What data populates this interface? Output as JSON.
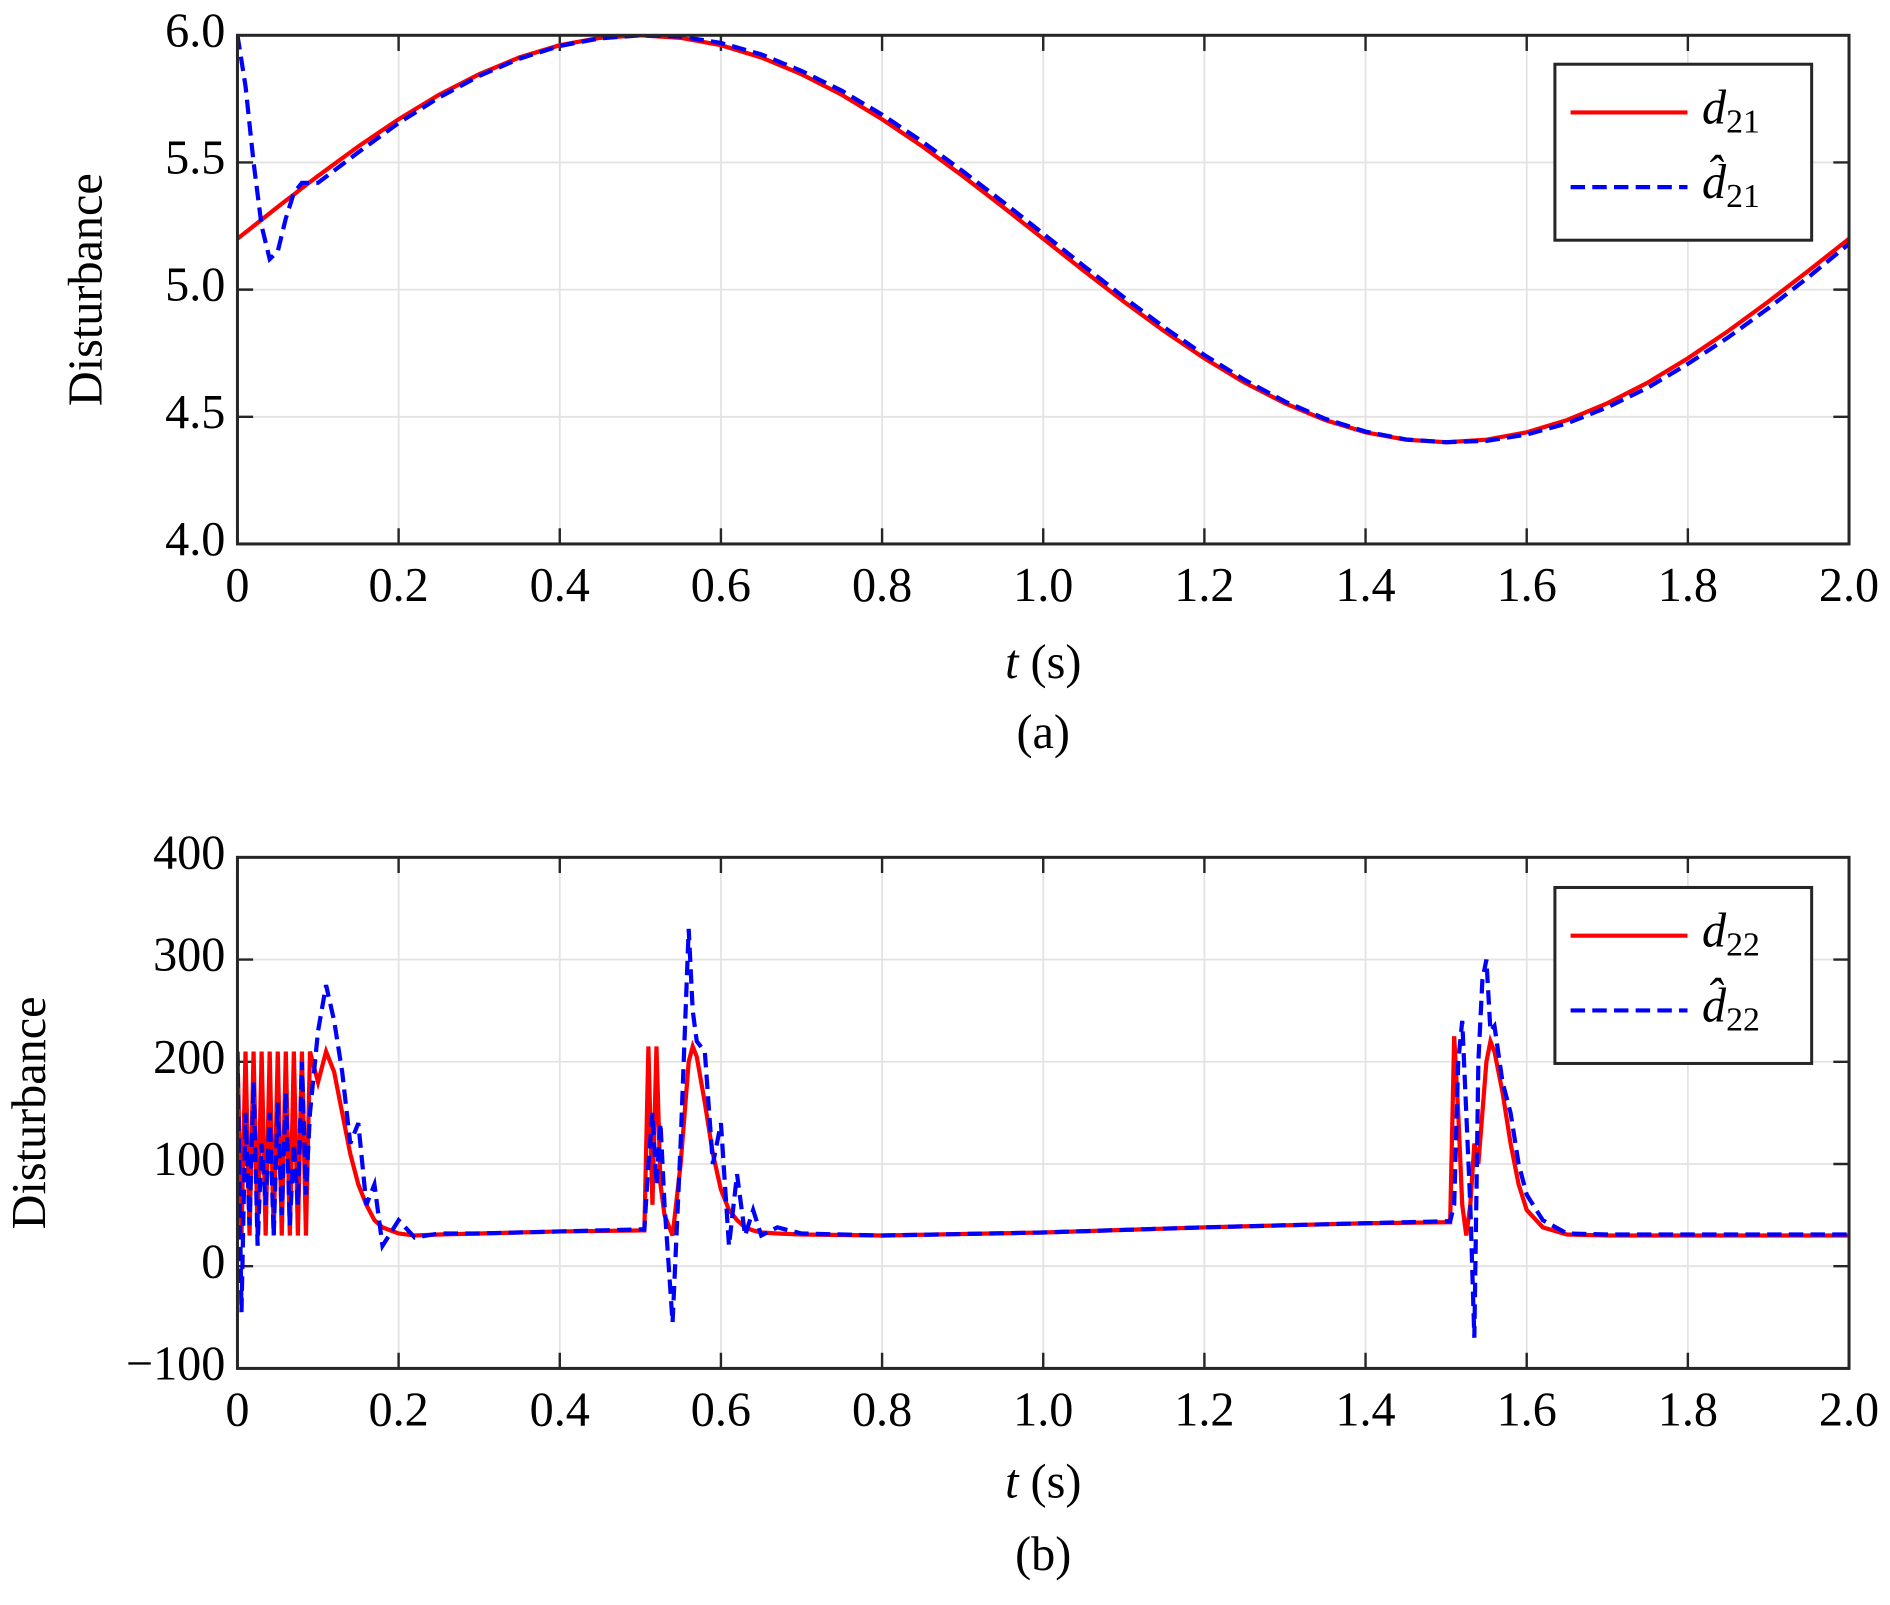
{
  "chart_data": [
    {
      "type": "line",
      "ylabel": "Disturbance",
      "xlabel": "t (s)",
      "caption": "(a)",
      "xlim": [
        0,
        2
      ],
      "ylim": [
        4,
        6
      ],
      "xticks": [
        0,
        0.2,
        0.4,
        0.6,
        0.8,
        {
          "value": 1,
          "label": "1.0"
        },
        1.2,
        1.4,
        1.6,
        1.8,
        {
          "value": 2,
          "label": "2.0"
        }
      ],
      "yticks": [
        {
          "value": 4,
          "label": "4.0"
        },
        4.5,
        {
          "value": 5,
          "label": "5.0"
        },
        5.5,
        {
          "value": 6,
          "label": "6.0"
        }
      ],
      "grid": true,
      "legend": "upper right",
      "x": [
        0,
        0.01,
        0.02,
        0.03,
        0.04,
        0.05,
        0.06,
        0.07,
        0.08,
        0.1,
        0.15,
        0.2,
        0.25,
        0.3,
        0.35,
        0.4,
        0.45,
        0.5,
        0.55,
        0.6,
        0.65,
        0.7,
        0.75,
        0.8,
        0.85,
        0.9,
        0.95,
        1.0,
        1.05,
        1.1,
        1.15,
        1.2,
        1.25,
        1.3,
        1.35,
        1.4,
        1.45,
        1.5,
        1.55,
        1.6,
        1.65,
        1.7,
        1.75,
        1.8,
        1.85,
        1.9,
        1.95,
        2.0
      ],
      "series": [
        {
          "name": "d21",
          "color": "#ff0000",
          "style": "solid",
          "values": [
            5.2,
            5.225,
            5.25,
            5.275,
            5.3,
            5.325,
            5.35,
            5.374,
            5.399,
            5.447,
            5.563,
            5.67,
            5.766,
            5.847,
            5.913,
            5.961,
            5.99,
            6.0,
            5.99,
            5.961,
            5.913,
            5.847,
            5.766,
            5.67,
            5.563,
            5.447,
            5.325,
            5.2,
            5.075,
            4.953,
            4.837,
            4.73,
            4.634,
            4.553,
            4.487,
            4.439,
            4.41,
            4.4,
            4.41,
            4.439,
            4.487,
            4.553,
            4.634,
            4.73,
            4.837,
            4.953,
            5.075,
            5.2
          ]
        },
        {
          "name": "d̂21",
          "color": "#0000ff",
          "style": "dashed",
          "values": [
            6.0,
            5.8,
            5.5,
            5.25,
            5.12,
            5.15,
            5.28,
            5.38,
            5.42,
            5.42,
            5.54,
            5.655,
            5.755,
            5.84,
            5.908,
            5.958,
            5.988,
            6.0,
            5.995,
            5.97,
            5.925,
            5.86,
            5.782,
            5.688,
            5.582,
            5.466,
            5.345,
            5.22,
            5.094,
            4.97,
            4.852,
            4.743,
            4.645,
            4.56,
            4.492,
            4.442,
            4.411,
            4.4,
            4.405,
            4.43,
            4.474,
            4.537,
            4.614,
            4.708,
            4.812,
            4.927,
            5.05,
            5.18
          ]
        }
      ]
    },
    {
      "type": "line",
      "ylabel": "Disturbance",
      "xlabel": "t (s)",
      "caption": "(b)",
      "xlim": [
        0,
        2
      ],
      "ylim": [
        -100,
        400
      ],
      "xticks": [
        0,
        0.2,
        0.4,
        0.6,
        0.8,
        {
          "value": 1,
          "label": "1.0"
        },
        1.2,
        1.4,
        1.6,
        1.8,
        {
          "value": 2,
          "label": "2.0"
        }
      ],
      "yticks": [
        {
          "value": -100,
          "label": "−100"
        },
        0,
        100,
        200,
        300,
        400
      ],
      "grid": true,
      "legend": "upper right",
      "x": [
        0,
        0.005,
        0.01,
        0.015,
        0.02,
        0.025,
        0.03,
        0.035,
        0.04,
        0.045,
        0.05,
        0.055,
        0.06,
        0.065,
        0.07,
        0.075,
        0.08,
        0.085,
        0.09,
        0.1,
        0.11,
        0.12,
        0.13,
        0.14,
        0.15,
        0.16,
        0.17,
        0.18,
        0.2,
        0.22,
        0.25,
        0.3,
        0.4,
        0.5,
        0.505,
        0.51,
        0.515,
        0.52,
        0.525,
        0.53,
        0.54,
        0.55,
        0.56,
        0.565,
        0.57,
        0.58,
        0.59,
        0.6,
        0.61,
        0.62,
        0.63,
        0.64,
        0.65,
        0.67,
        0.7,
        0.8,
        1.0,
        1.2,
        1.4,
        1.5,
        1.505,
        1.51,
        1.515,
        1.52,
        1.525,
        1.53,
        1.535,
        1.54,
        1.545,
        1.55,
        1.555,
        1.56,
        1.57,
        1.58,
        1.59,
        1.6,
        1.62,
        1.65,
        1.7,
        2.0
      ],
      "series": [
        {
          "name": "d22",
          "color": "#ff0000",
          "style": "solid",
          "values": [
            210,
            30,
            210,
            30,
            210,
            30,
            210,
            30,
            210,
            30,
            210,
            30,
            210,
            30,
            210,
            30,
            210,
            30,
            210,
            180,
            210,
            190,
            150,
            110,
            80,
            60,
            45,
            38,
            32,
            30,
            31,
            32,
            34,
            35,
            35,
            215,
            60,
            215,
            80,
            50,
            30,
            100,
            200,
            215,
            205,
            160,
            110,
            75,
            55,
            45,
            38,
            35,
            33,
            32,
            31,
            30,
            33,
            38,
            42,
            43,
            43,
            225,
            150,
            60,
            30,
            60,
            120,
            100,
            150,
            200,
            220,
            210,
            170,
            120,
            80,
            55,
            38,
            31,
            30,
            30
          ]
        },
        {
          "name": "d̂22",
          "color": "#0000ff",
          "style": "dashed",
          "values": [
            210,
            -45,
            150,
            40,
            180,
            20,
            120,
            60,
            150,
            30,
            160,
            50,
            170,
            40,
            120,
            60,
            200,
            70,
            150,
            230,
            275,
            240,
            190,
            120,
            140,
            60,
            80,
            20,
            45,
            28,
            32,
            32,
            34,
            36,
            36,
            100,
            150,
            80,
            140,
            60,
            -55,
            120,
            330,
            250,
            220,
            210,
            100,
            140,
            20,
            90,
            30,
            55,
            30,
            38,
            32,
            30,
            33,
            38,
            42,
            44,
            44,
            60,
            200,
            240,
            150,
            60,
            -70,
            200,
            280,
            300,
            230,
            235,
            180,
            150,
            100,
            70,
            45,
            32,
            31,
            31
          ]
        }
      ]
    }
  ]
}
